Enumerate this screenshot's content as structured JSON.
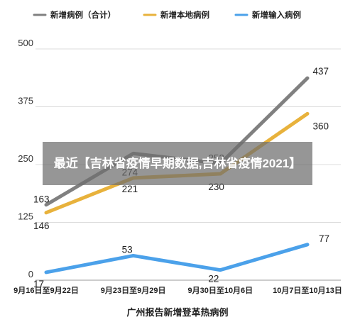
{
  "overlay": {
    "text": "最近【吉林省疫情早期数据,吉林省疫情2021】"
  },
  "chart_data": {
    "type": "line",
    "title": "",
    "xlabel": "广州报告新增登革热病例",
    "ylabel": "",
    "categories": [
      "9月16日至9月22日",
      "9月23日至9月29日",
      "9月30日至10月6日",
      "10月7日至10月13日"
    ],
    "ylim": [
      0,
      500
    ],
    "yticks": [
      0,
      125,
      250,
      375,
      500
    ],
    "grid": true,
    "legend_position": "top",
    "series": [
      {
        "name": "新增病例（合计）",
        "color": "#808080",
        "values": [
          163,
          274,
          252,
          437
        ]
      },
      {
        "name": "新增本地病例",
        "color": "#e8b23c",
        "values": [
          146,
          221,
          230,
          360
        ]
      },
      {
        "name": "新增输入病例",
        "color": "#4ba1ea",
        "values": [
          17,
          53,
          22,
          77
        ]
      }
    ]
  }
}
